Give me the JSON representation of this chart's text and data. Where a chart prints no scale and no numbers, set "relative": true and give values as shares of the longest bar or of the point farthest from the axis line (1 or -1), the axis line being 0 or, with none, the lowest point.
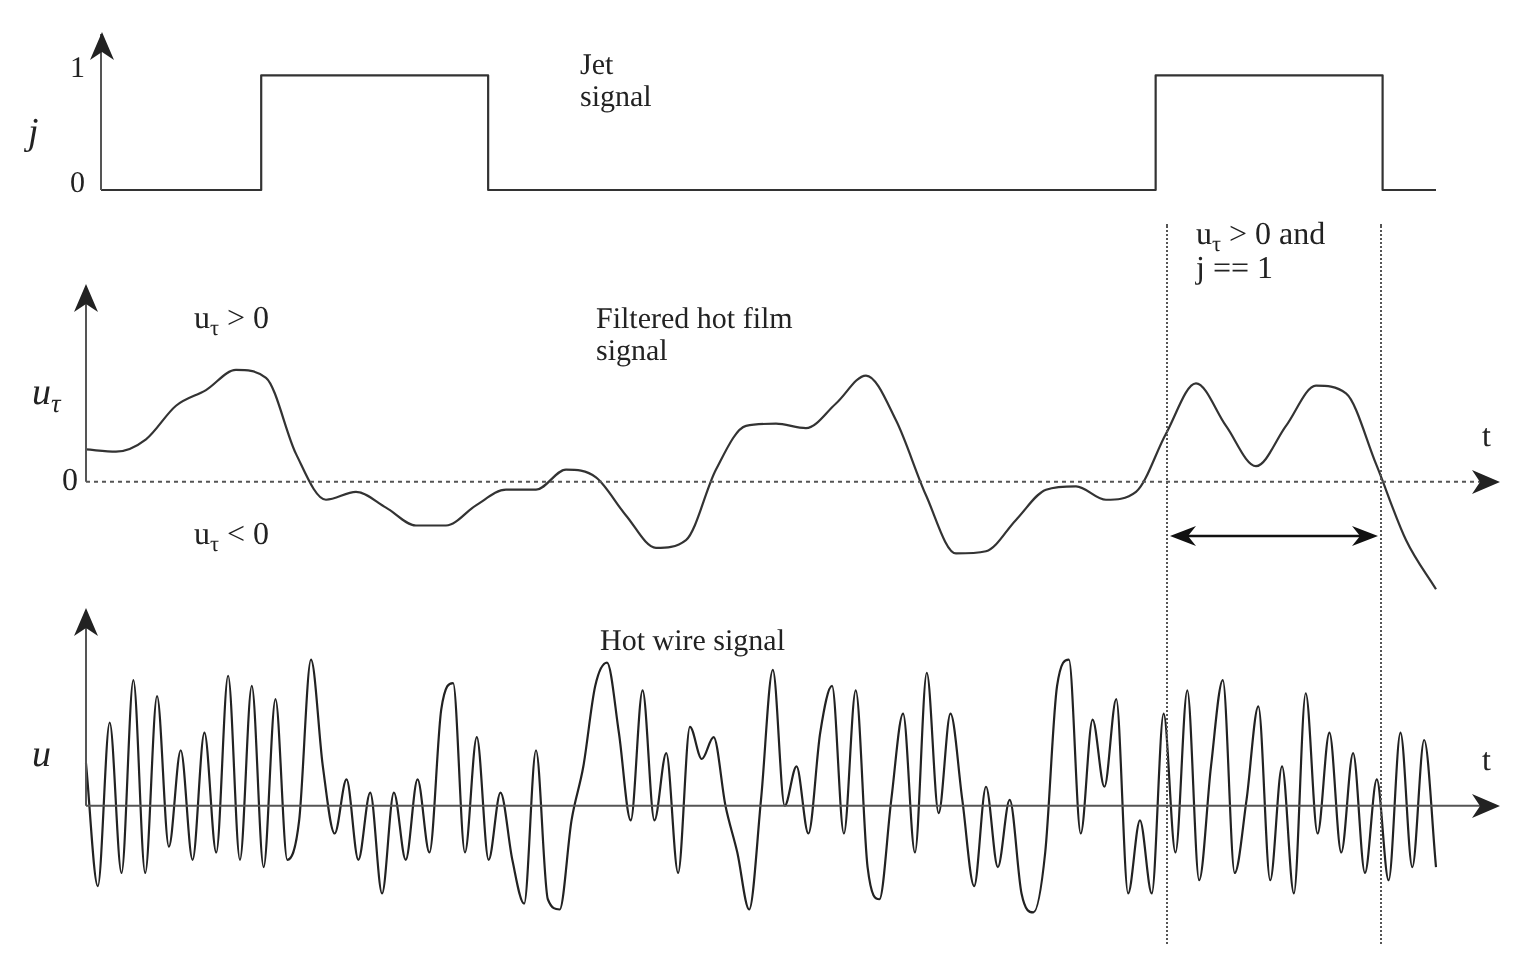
{
  "chart_data": [
    {
      "type": "step",
      "title": "Jet signal",
      "ylabel": "j",
      "tick_labels": "y",
      "color": "#333333",
      "ylim": [
        0,
        1.36
      ],
      "yticks": [
        0,
        1
      ],
      "categories": [
        null,
        null,
        null,
        null,
        null,
        null,
        null,
        null,
        null,
        null,
        null,
        null,
        null,
        null,
        null,
        null,
        null,
        null,
        null,
        null,
        null,
        null,
        null,
        null,
        null,
        null,
        null,
        null,
        null,
        null,
        null,
        null,
        null,
        null,
        null,
        null,
        null,
        null,
        null,
        null,
        null,
        null,
        null,
        null,
        null,
        null,
        null,
        null,
        null,
        null,
        null,
        null,
        null,
        null,
        null,
        null,
        null,
        null,
        null,
        null,
        null,
        null,
        null,
        null,
        null,
        null,
        null,
        null,
        null,
        null,
        null,
        null,
        null,
        null,
        null,
        null,
        null,
        null,
        null,
        null,
        null,
        null,
        null,
        null,
        null,
        null,
        null,
        null,
        null,
        null,
        null,
        null,
        null,
        null,
        null,
        null,
        null,
        null,
        null,
        null,
        null
      ],
      "values": [
        0,
        0,
        0,
        0,
        0,
        0,
        0,
        0,
        0,
        0,
        0,
        0,
        0,
        1,
        1,
        1,
        1,
        1,
        1,
        1,
        1,
        1,
        1,
        1,
        1,
        1,
        1,
        1,
        1,
        1,
        0,
        0,
        0,
        0,
        0,
        0,
        0,
        0,
        0,
        0,
        0,
        0,
        0,
        0,
        0,
        0,
        0,
        0,
        0,
        0,
        0,
        0,
        0,
        0,
        0,
        0,
        0,
        0,
        0,
        0,
        0,
        0,
        0,
        0,
        0,
        0,
        0,
        0,
        0,
        0,
        0,
        0,
        0,
        0,
        0,
        0,
        0,
        0,
        0,
        0,
        1,
        1,
        1,
        1,
        1,
        1,
        1,
        1,
        1,
        1,
        1,
        1,
        1,
        1,
        1,
        1,
        1,
        0,
        0,
        0,
        0
      ]
    },
    {
      "type": "line",
      "title": "Filtered hot film signal",
      "ylabel": "u$_{τ}$",
      "xlabel": "t",
      "relative": true,
      "tick_labels": false,
      "color": "#333333",
      "annotations": [
        "u$_{τ}$ > 0",
        "u$_{τ}$ < 0",
        "u$_{τ}$ > 0 and j == 1",
        "0"
      ],
      "categories": [
        null,
        null,
        null,
        null,
        null,
        null,
        null,
        null,
        null,
        null,
        null,
        null,
        null,
        null,
        null,
        null,
        null,
        null,
        null,
        null,
        null,
        null,
        null,
        null,
        null,
        null,
        null,
        null,
        null,
        null,
        null,
        null,
        null,
        null,
        null,
        null,
        null,
        null,
        null,
        null,
        null,
        null,
        null,
        null,
        null,
        null
      ],
      "values": [
        0.29,
        0.27,
        0.38,
        0.68,
        0.82,
        1,
        0.93,
        0.25,
        -0.16,
        -0.09,
        -0.23,
        -0.39,
        -0.39,
        -0.21,
        -0.07,
        -0.07,
        0.11,
        0.04,
        -0.3,
        -0.59,
        -0.52,
        0.11,
        0.5,
        0.52,
        0.48,
        0.7,
        0.95,
        0.55,
        -0.12,
        -0.64,
        -0.62,
        -0.34,
        -0.07,
        -0.04,
        -0.16,
        -0.09,
        0.43,
        0.88,
        0.5,
        0.14,
        0.5,
        0.86,
        0.79,
        0.16,
        -0.52,
        -0.96
      ]
    },
    {
      "type": "line",
      "title": "Hot wire signal",
      "ylabel": "u",
      "xlabel": "t",
      "relative": true,
      "tick_labels": false,
      "color": "#222222",
      "categories": [
        null,
        null,
        null,
        null,
        null,
        null,
        null,
        null,
        null,
        null,
        null,
        null,
        null,
        null,
        null,
        null,
        null,
        null,
        null,
        null,
        null,
        null,
        null,
        null,
        null,
        null,
        null,
        null,
        null,
        null,
        null,
        null,
        null,
        null,
        null,
        null,
        null,
        null,
        null,
        null,
        null,
        null,
        null,
        null,
        null,
        null,
        null,
        null,
        null,
        null,
        null,
        null,
        null,
        null,
        null,
        null,
        null,
        null,
        null,
        null,
        null,
        null,
        null,
        null,
        null,
        null,
        null,
        null,
        null,
        null,
        null,
        null,
        null,
        null,
        null,
        null,
        null,
        null,
        null,
        null,
        null,
        null,
        null,
        null,
        null,
        null,
        null,
        null,
        null,
        null,
        null,
        null,
        null,
        null,
        null,
        null,
        null,
        null,
        null,
        null,
        null,
        null,
        null,
        null,
        null,
        null,
        null,
        null,
        null,
        null,
        null,
        null,
        null,
        null,
        null
      ],
      "values": [
        0.29,
        -0.55,
        0.57,
        -0.46,
        0.86,
        -0.46,
        0.75,
        -0.28,
        0.38,
        -0.37,
        0.5,
        -0.32,
        0.89,
        -0.37,
        0.82,
        -0.42,
        0.73,
        -0.37,
        -0.1,
        1.0,
        0.27,
        -0.19,
        0.18,
        -0.37,
        0.09,
        -0.6,
        0.09,
        -0.37,
        0.18,
        -0.32,
        0.66,
        0.84,
        -0.32,
        0.47,
        -0.37,
        0.09,
        -0.37,
        -0.67,
        0.38,
        -0.64,
        -0.71,
        -0.1,
        0.27,
        0.82,
        0.98,
        0.5,
        -0.1,
        0.79,
        -0.1,
        0.36,
        -0.46,
        0.54,
        0.32,
        0.47,
        0.0,
        -0.32,
        -0.71,
        0.04,
        0.93,
        0.0,
        0.27,
        -0.19,
        0.5,
        0.82,
        -0.19,
        0.79,
        -0.42,
        -0.64,
        0.04,
        0.63,
        -0.32,
        0.91,
        -0.05,
        0.63,
        0.04,
        -0.55,
        0.13,
        -0.42,
        0.04,
        -0.6,
        -0.73,
        -0.32,
        0.82,
        1.0,
        -0.19,
        0.59,
        0.13,
        0.73,
        -0.6,
        -0.1,
        -0.6,
        0.63,
        -0.32,
        0.79,
        -0.51,
        0.27,
        0.86,
        -0.46,
        0.04,
        0.68,
        -0.51,
        0.27,
        -0.6,
        0.77,
        -0.19,
        0.5,
        -0.32,
        0.36,
        -0.46,
        0.18,
        -0.51,
        0.5,
        -0.42,
        0.45,
        -0.42
      ]
    }
  ]
}
